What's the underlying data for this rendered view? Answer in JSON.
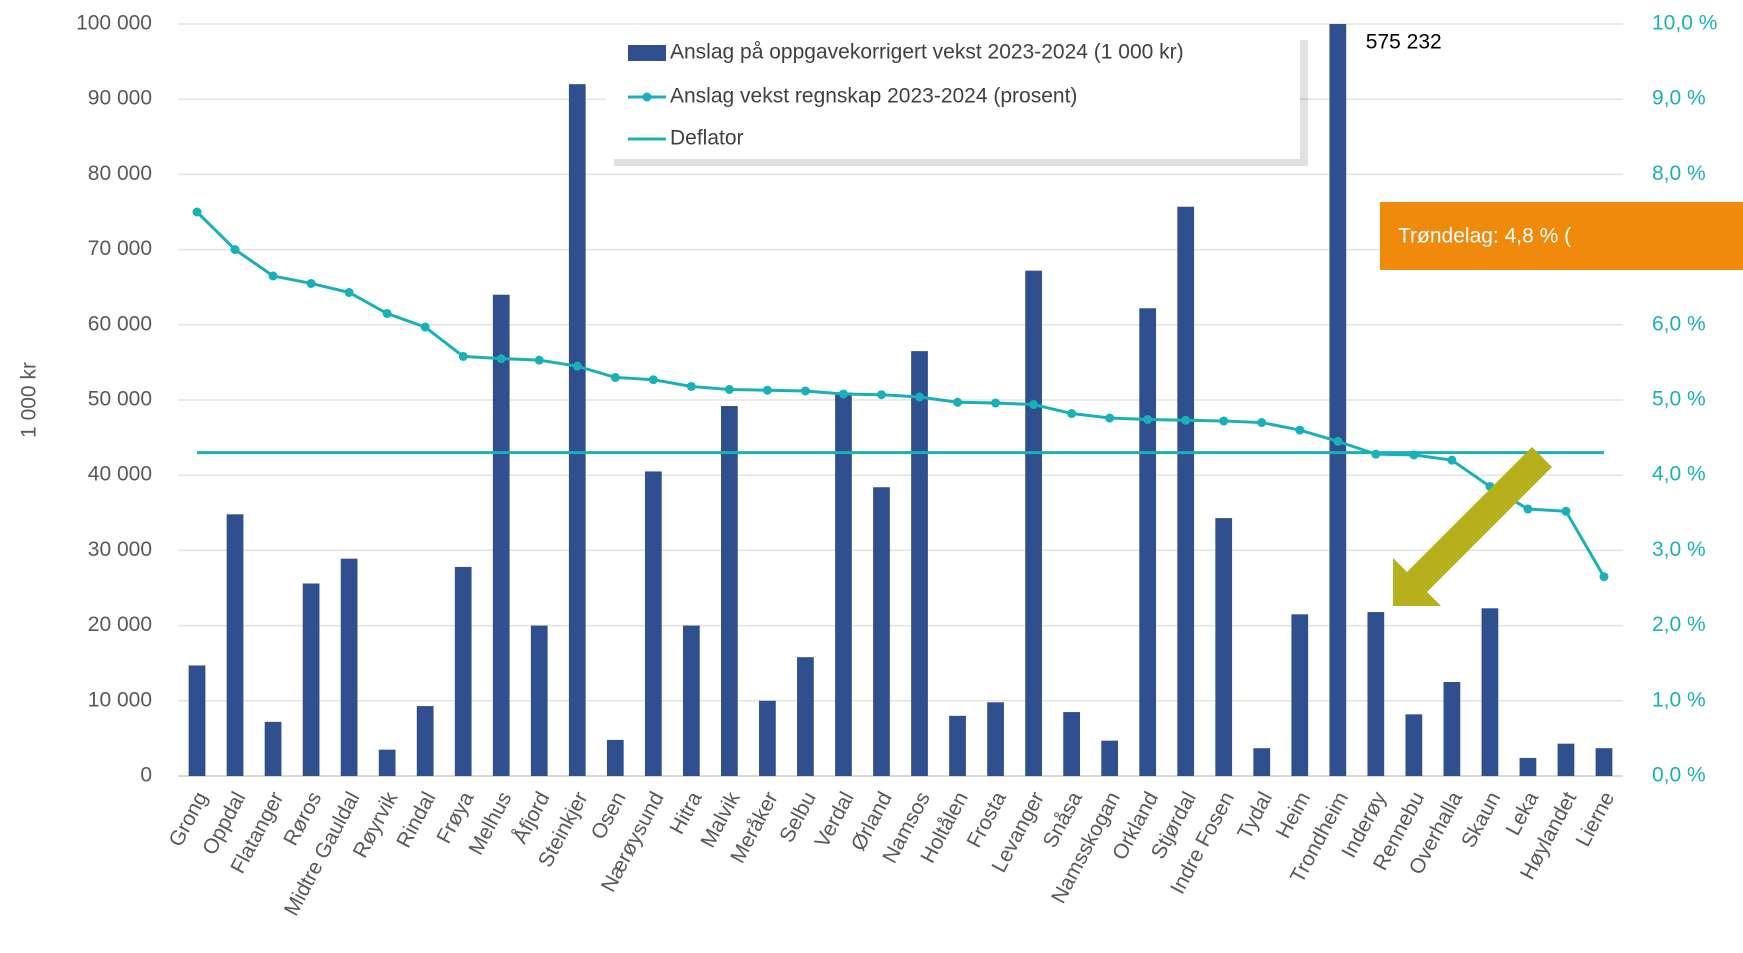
{
  "chart_data": {
    "type": "bar-line",
    "y_label": "1 000 kr",
    "annotation": "Trøndelag: 4,8 % (",
    "categories": [
      "Grong",
      "Oppdal",
      "Flatanger",
      "Røros",
      "Midtre Gauldal",
      "Røyrvik",
      "Rindal",
      "Frøya",
      "Melhus",
      "Åfjord",
      "Steinkjer",
      "Osen",
      "Nærøysund",
      "Hitra",
      "Malvik",
      "Meråker",
      "Selbu",
      "Verdal",
      "Ørland",
      "Namsos",
      "Holtålen",
      "Frosta",
      "Levanger",
      "Snåsa",
      "Namsskogan",
      "Orkland",
      "Stjørdal",
      "Indre Fosen",
      "Tydal",
      "Heim",
      "Trondheim",
      "Inderøy",
      "Rennebu",
      "Overhalla",
      "Skaun",
      "Leka",
      "Høylandet",
      "Lierne"
    ],
    "series": [
      {
        "name": "Anslag på oppgavekorrigert vekst 2023-2024 (1 000 kr)",
        "color": "#2f4f8f",
        "values": [
          14700,
          34800,
          7200,
          25600,
          28900,
          3500,
          9300,
          27800,
          64000,
          20000,
          92000,
          4800,
          40500,
          20000,
          49200,
          10000,
          15800,
          51000,
          38400,
          56500,
          8000,
          9800,
          67200,
          8500,
          4700,
          62200,
          75700,
          34300,
          3700,
          21500,
          575232,
          21800,
          8200,
          12500,
          22300,
          2400,
          4300,
          3700
        ],
        "value_labels": [
          null,
          null,
          null,
          null,
          null,
          null,
          null,
          null,
          null,
          null,
          null,
          null,
          null,
          null,
          null,
          null,
          null,
          null,
          null,
          null,
          null,
          null,
          null,
          null,
          null,
          null,
          null,
          null,
          null,
          null,
          "575 232",
          null,
          null,
          null,
          null,
          null,
          null,
          null
        ]
      },
      {
        "name": "Anslag vekst regnskap 2023-2024 (prosent)",
        "color": "#1ab0b8",
        "axis": "y2",
        "values": [
          7.5,
          7.0,
          6.65,
          6.55,
          6.43,
          6.15,
          5.97,
          5.58,
          5.55,
          5.53,
          5.45,
          5.3,
          5.27,
          5.18,
          5.14,
          5.13,
          5.12,
          5.08,
          5.07,
          5.04,
          4.97,
          4.96,
          4.94,
          4.82,
          4.76,
          4.74,
          4.73,
          4.72,
          4.7,
          4.6,
          4.45,
          4.28,
          4.27,
          4.2,
          3.85,
          3.55,
          3.52,
          2.65
        ]
      },
      {
        "name": "Deflator",
        "color": "#1ab0b8",
        "axis": "y2",
        "value": 4.3
      }
    ],
    "ylim": [
      0,
      100000
    ],
    "yticks": [
      0,
      {
        "value": 10000,
        "label": "10 000"
      },
      {
        "value": 20000,
        "label": "20 000"
      },
      {
        "value": 30000,
        "label": "30 000"
      },
      {
        "value": 40000,
        "label": "40 000"
      },
      {
        "value": 50000,
        "label": "50 000"
      },
      {
        "value": 60000,
        "label": "60 000"
      },
      {
        "value": 70000,
        "label": "70 000"
      },
      {
        "value": 80000,
        "label": "80 000"
      },
      {
        "value": 90000,
        "label": "90 000"
      },
      {
        "value": 100000,
        "label": "100 000"
      }
    ],
    "y2lim": [
      0,
      10
    ],
    "y2ticks": [
      {
        "value": 0,
        "label": "0,0 %"
      },
      {
        "value": 1,
        "label": "1,0 %"
      },
      {
        "value": 2,
        "label": "2,0 %"
      },
      {
        "value": 3,
        "label": "3,0 %"
      },
      {
        "value": 4,
        "label": "4,0 %"
      },
      {
        "value": 5,
        "label": "5,0 %"
      },
      {
        "value": 6,
        "label": "6,0 %"
      },
      {
        "value": 7,
        "label": "7,0 %"
      },
      {
        "value": 8,
        "label": "8,0 %"
      },
      {
        "value": 9,
        "label": "9,0 %"
      },
      {
        "value": 10,
        "label": "10,0 %"
      }
    ],
    "grid": true
  }
}
